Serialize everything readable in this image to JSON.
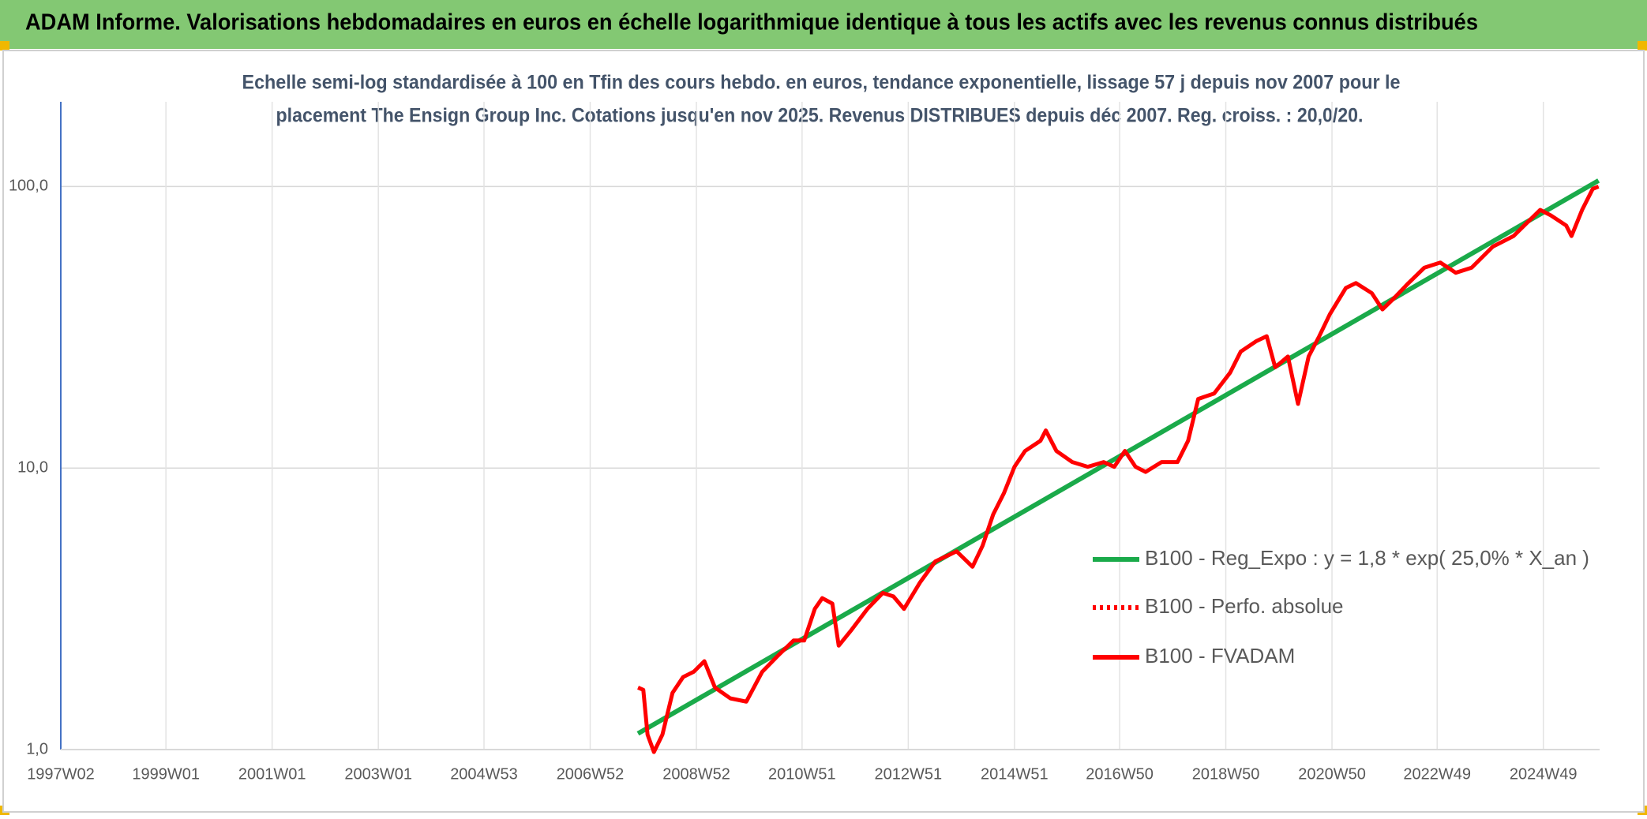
{
  "header": {
    "title": "ADAM Informe. Valorisations hebdomadaires en euros en échelle logarithmique identique à tous les actifs avec les revenus connus distribués"
  },
  "chart_data": {
    "type": "line",
    "subtitle": [
      "Echelle semi-log standardisée à 100 en Tfin des cours hebdo. en euros, tendance exponentielle, lissage 57 j depuis nov 2007 pour le",
      "placement The Ensign Group Inc. Cotations jusqu'en nov 2025. Revenus DISTRIBUES depuis déc 2007. Reg. croiss. : 20,0/20."
    ],
    "log_scale": true,
    "grid": true,
    "legend_position": "right",
    "xlim": [
      1997.02,
      2026.0
    ],
    "xticks": [
      {
        "value": 1997.02,
        "label": "1997W02"
      },
      {
        "value": 1999.0,
        "label": "1999W01"
      },
      {
        "value": 2001.0,
        "label": "2001W01"
      },
      {
        "value": 2003.0,
        "label": "2003W01"
      },
      {
        "value": 2004.99,
        "label": "2004W53"
      },
      {
        "value": 2006.99,
        "label": "2006W52"
      },
      {
        "value": 2008.99,
        "label": "2008W52"
      },
      {
        "value": 2010.98,
        "label": "2010W51"
      },
      {
        "value": 2012.98,
        "label": "2012W51"
      },
      {
        "value": 2014.98,
        "label": "2014W51"
      },
      {
        "value": 2016.96,
        "label": "2016W50"
      },
      {
        "value": 2018.96,
        "label": "2018W50"
      },
      {
        "value": 2020.96,
        "label": "2020W50"
      },
      {
        "value": 2022.94,
        "label": "2022W49"
      },
      {
        "value": 2024.94,
        "label": "2024W49"
      }
    ],
    "ylim": [
      1,
      200
    ],
    "yticks": [
      {
        "value": 1,
        "label": "1,0"
      },
      {
        "value": 10,
        "label": "10,0"
      },
      {
        "value": 100,
        "label": "100,0"
      }
    ],
    "series": [
      {
        "name": "B100 - Reg_Expo : y = 1,8 * exp( 25,0% *  X_an )",
        "color": "#1aaa4a",
        "style": "solid",
        "x": [
          2007.89,
          2025.98
        ],
        "values": [
          1.14,
          105
        ]
      },
      {
        "name": "B100 - Perfo. absolue",
        "color": "#ff0000",
        "style": "dotted",
        "x": [],
        "values": []
      },
      {
        "name": "B100 - FVADAM",
        "color": "#ff0000",
        "style": "solid",
        "x": [
          2007.89,
          2007.99,
          2008.07,
          2008.19,
          2008.35,
          2008.54,
          2008.74,
          2008.94,
          2009.14,
          2009.34,
          2009.63,
          2009.93,
          2010.23,
          2010.52,
          2010.82,
          2011.02,
          2011.22,
          2011.36,
          2011.55,
          2011.67,
          2011.91,
          2012.21,
          2012.5,
          2012.7,
          2012.9,
          2013.2,
          2013.49,
          2013.89,
          2014.19,
          2014.38,
          2014.58,
          2014.78,
          2014.98,
          2015.18,
          2015.47,
          2015.57,
          2015.77,
          2016.07,
          2016.36,
          2016.66,
          2016.86,
          2017.06,
          2017.26,
          2017.45,
          2017.75,
          2018.05,
          2018.25,
          2018.44,
          2018.74,
          2019.04,
          2019.24,
          2019.53,
          2019.73,
          2019.89,
          2020.13,
          2020.32,
          2020.52,
          2020.72,
          2020.92,
          2021.22,
          2021.41,
          2021.71,
          2021.91,
          2022.11,
          2022.4,
          2022.7,
          2023.0,
          2023.29,
          2023.59,
          2023.99,
          2024.38,
          2024.58,
          2024.88,
          2025.08,
          2025.37,
          2025.47,
          2025.67,
          2025.87,
          2025.98
        ],
        "values": [
          1.66,
          1.63,
          1.13,
          0.98,
          1.13,
          1.59,
          1.81,
          1.89,
          2.06,
          1.66,
          1.52,
          1.48,
          1.89,
          2.15,
          2.44,
          2.44,
          3.16,
          3.45,
          3.3,
          2.34,
          2.66,
          3.16,
          3.6,
          3.5,
          3.16,
          3.92,
          4.66,
          5.06,
          4.46,
          5.3,
          6.85,
          8.13,
          10.1,
          11.5,
          12.5,
          13.6,
          11.5,
          10.5,
          10.1,
          10.5,
          10.1,
          11.5,
          10.1,
          9.69,
          10.5,
          10.5,
          12.5,
          17.6,
          18.4,
          21.8,
          25.9,
          28.2,
          29.4,
          22.8,
          24.9,
          16.9,
          24.9,
          29.4,
          35.2,
          43.6,
          45.4,
          41.8,
          36.6,
          39.8,
          45.4,
          51.5,
          53.7,
          49.4,
          51.5,
          61.2,
          66.7,
          72.7,
          82.6,
          79.0,
          72.7,
          66.7,
          82.6,
          98.1,
          100
        ]
      }
    ]
  }
}
